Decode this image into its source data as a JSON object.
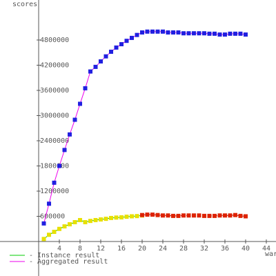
{
  "chart_data": {
    "type": "line",
    "y_label": "scores",
    "x_label": "war",
    "xlim": [
      -7.47,
      45.87
    ],
    "ylim": [
      -822000,
      5753000
    ],
    "xticks": [
      4,
      8,
      12,
      16,
      20,
      24,
      28,
      32,
      36,
      40,
      44
    ],
    "yticks": [
      600000,
      1200000,
      1800000,
      2400000,
      3000000,
      3600000,
      4200000,
      4800000
    ],
    "series": [
      {
        "name": "Instance result",
        "color": "#00cc00",
        "marker_color": "#e8e000",
        "dashed": false,
        "x": [
          1,
          2,
          3,
          4,
          5,
          6,
          7,
          8,
          9,
          10,
          11,
          12,
          13,
          14,
          15,
          16,
          17,
          18,
          19,
          20
        ],
        "values": [
          60000,
          160000,
          230000,
          300000,
          360000,
          410000,
          460000,
          510000,
          460000,
          490000,
          510000,
          525000,
          540000,
          560000,
          570000,
          575000,
          590000,
          600000,
          605000,
          620000
        ]
      },
      {
        "color": "#aa0000",
        "marker_color": "#dd2200",
        "dashed": true,
        "x": [
          20,
          21,
          22,
          23,
          24,
          25,
          26,
          27,
          28,
          29,
          30,
          31,
          32,
          33,
          34,
          35,
          36,
          37,
          38,
          39,
          40
        ],
        "values": [
          630000,
          640000,
          640000,
          630000,
          620000,
          620000,
          610000,
          610000,
          620000,
          620000,
          620000,
          620000,
          610000,
          610000,
          610000,
          620000,
          620000,
          620000,
          630000,
          610000,
          600000
        ]
      },
      {
        "name": "Aggregated result",
        "color": "#ee00ee",
        "marker_color": "#2020e0",
        "dashed": false,
        "x": [
          1,
          2,
          3,
          4,
          5,
          6,
          7,
          8,
          9,
          10,
          11,
          12,
          13,
          14,
          15,
          16,
          17,
          18,
          19,
          20,
          21,
          22,
          23,
          24,
          25,
          26,
          27,
          28,
          29,
          30,
          31,
          32,
          33,
          34,
          35,
          36,
          37,
          38,
          39,
          40
        ],
        "values": [
          430000,
          900000,
          1400000,
          1800000,
          2180000,
          2550000,
          2900000,
          3280000,
          3650000,
          4050000,
          4160000,
          4290000,
          4410000,
          4520000,
          4620000,
          4700000,
          4780000,
          4850000,
          4920000,
          4980000,
          5000000,
          5000000,
          5000000,
          5000000,
          4980000,
          4980000,
          4980000,
          4960000,
          4960000,
          4960000,
          4960000,
          4960000,
          4950000,
          4950000,
          4930000,
          4930000,
          4950000,
          4950000,
          4950000,
          4930000
        ]
      }
    ]
  }
}
